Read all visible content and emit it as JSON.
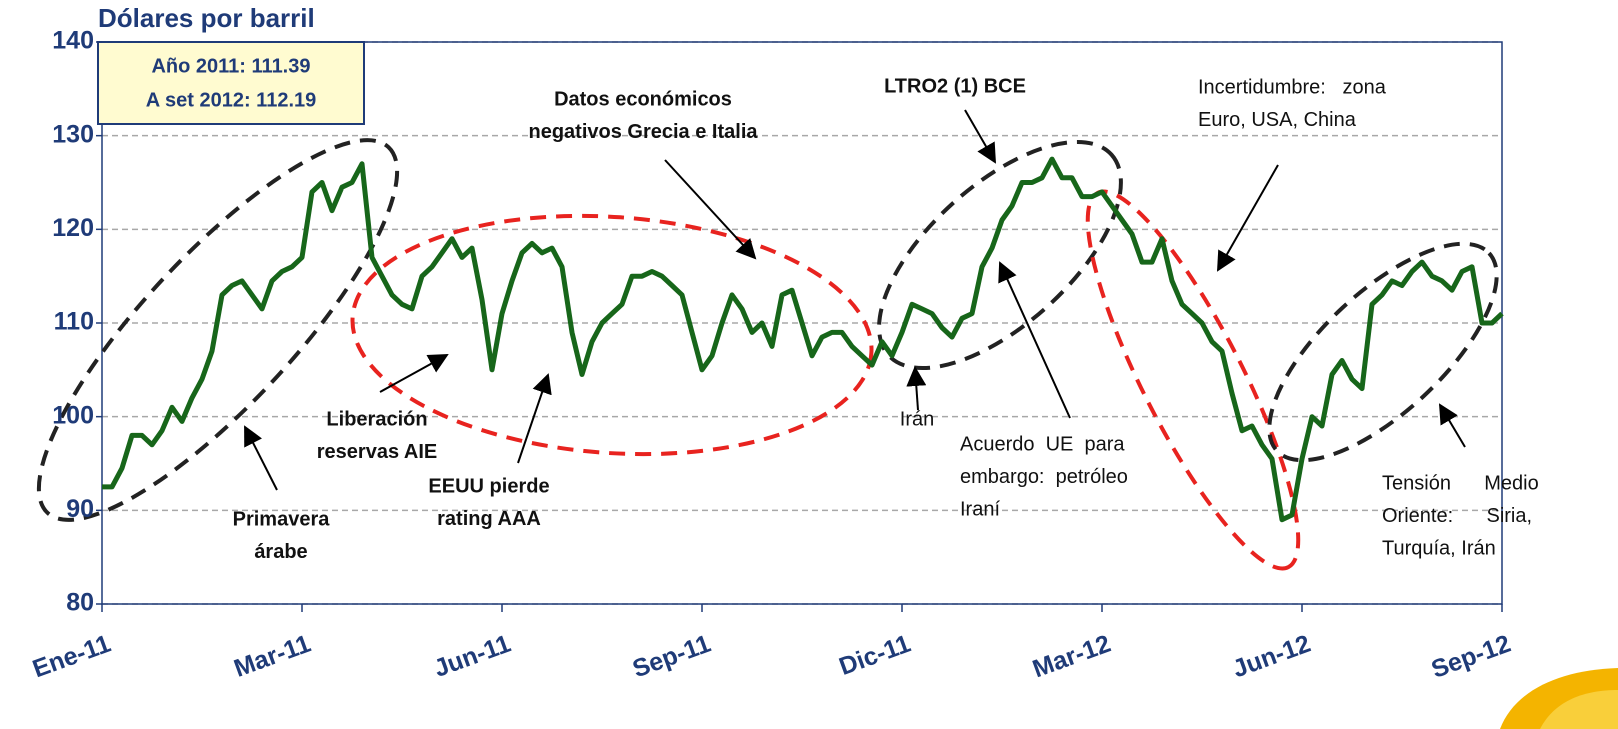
{
  "chart_data": {
    "type": "line",
    "y_axis_label": "Dólares por barril",
    "info_box": [
      "Año 2011: 111.39",
      "A set 2012: 112.19"
    ],
    "annotations": [
      {
        "lines": [
          "Datos económicos",
          "negativos Grecia e Italia"
        ]
      },
      {
        "lines": [
          "LTRO2 (1) BCE"
        ]
      },
      {
        "lines": [
          "Incertidumbre:   zona",
          "Euro, USA, China"
        ]
      },
      {
        "lines": [
          "Liberación",
          "reservas AIE"
        ]
      },
      {
        "lines": [
          "Primavera",
          "árabe"
        ]
      },
      {
        "lines": [
          "EEUU pierde",
          "rating AAA"
        ]
      },
      {
        "lines": [
          "Irán"
        ]
      },
      {
        "lines": [
          "Acuerdo  UE  para",
          "embargo:  petróleo",
          "Iraní"
        ]
      },
      {
        "lines": [
          "Tensión      Medio",
          "Oriente:      Siria,",
          "Turquía, Irán"
        ]
      }
    ],
    "color": "#17661a",
    "x": [
      0,
      0.05,
      0.1,
      0.15,
      0.2,
      0.25,
      0.3,
      0.35,
      0.4,
      0.45,
      0.5,
      0.55,
      0.6,
      0.65,
      0.7,
      0.75,
      0.8,
      0.85,
      0.9,
      0.95,
      1,
      1.05,
      1.1,
      1.15,
      1.2,
      1.25,
      1.3,
      1.35,
      1.4,
      1.45,
      1.5,
      1.55,
      1.6,
      1.65,
      1.7,
      1.75,
      1.8,
      1.85,
      1.9,
      1.95,
      2,
      2.05,
      2.1,
      2.15,
      2.2,
      2.25,
      2.3,
      2.35,
      2.4,
      2.45,
      2.5,
      2.55,
      2.6,
      2.65,
      2.7,
      2.75,
      2.8,
      2.85,
      2.9,
      2.95,
      3,
      3.05,
      3.1,
      3.15,
      3.2,
      3.25,
      3.3,
      3.35,
      3.4,
      3.45,
      3.5,
      3.55,
      3.6,
      3.65,
      3.7,
      3.75,
      3.8,
      3.85,
      3.9,
      3.95,
      4,
      4.05,
      4.1,
      4.15,
      4.2,
      4.25,
      4.3,
      4.35,
      4.4,
      4.45,
      4.5,
      4.55,
      4.6,
      4.65,
      4.7,
      4.75,
      4.8,
      4.85,
      4.9,
      4.95,
      5,
      5.05,
      5.1,
      5.15,
      5.2,
      5.25,
      5.3,
      5.35,
      5.4,
      5.45,
      5.5,
      5.55,
      5.6,
      5.65,
      5.7,
      5.75,
      5.8,
      5.85,
      5.9,
      5.95,
      6,
      6.05,
      6.1,
      6.15,
      6.2,
      6.25,
      6.3,
      6.35,
      6.4,
      6.45,
      6.5,
      6.55,
      6.6,
      6.65,
      6.7,
      6.75,
      6.8,
      6.85,
      6.9,
      6.95,
      7
    ],
    "values": [
      92.5,
      92.5,
      94.5,
      98,
      98,
      97,
      98.5,
      101,
      99.5,
      102,
      104,
      107,
      113,
      114,
      114.5,
      113,
      111.5,
      114.5,
      115.5,
      116,
      117,
      124,
      125,
      122,
      124.5,
      125,
      127,
      117,
      115,
      113,
      112,
      111.5,
      115,
      116,
      117.5,
      119,
      117,
      118,
      112.5,
      105,
      111,
      114.5,
      117.5,
      118.5,
      117.5,
      118,
      116,
      109,
      104.5,
      108,
      110,
      111,
      112,
      115,
      115,
      115.5,
      115,
      114,
      113,
      109,
      105,
      106.5,
      110,
      113,
      111.5,
      109,
      110,
      107.5,
      113,
      113.5,
      110,
      106.5,
      108.5,
      109,
      109,
      107.5,
      106.5,
      105.5,
      108,
      106.5,
      109,
      112,
      111.5,
      111,
      109.5,
      108.5,
      110.5,
      111,
      116,
      118,
      121,
      122.5,
      125,
      125,
      125.5,
      127.5,
      125.5,
      125.5,
      123.5,
      123.5,
      124,
      122.5,
      121,
      119.5,
      116.5,
      116.5,
      119,
      114.5,
      112,
      111,
      110,
      108,
      107,
      102.5,
      98.5,
      99,
      97,
      95.5,
      89,
      89.5,
      95.5,
      100,
      99,
      104.5,
      106,
      104,
      103,
      112,
      113,
      114.5,
      114,
      115.5,
      116.5,
      115,
      114.5,
      113.5,
      115.5,
      116,
      110,
      110,
      111
    ],
    "xlim": [
      0,
      7
    ],
    "xticks": [
      {
        "value": 0,
        "label": "Ene-11"
      },
      {
        "value": 1,
        "label": "Mar-11"
      },
      {
        "value": 2,
        "label": "Jun-11"
      },
      {
        "value": 3,
        "label": "Sep-11"
      },
      {
        "value": 4,
        "label": "Dic-11"
      },
      {
        "value": 5,
        "label": "Mar-12"
      },
      {
        "value": 6,
        "label": "Jun-12"
      },
      {
        "value": 7,
        "label": "Sep-12"
      }
    ],
    "ylim": [
      80,
      140
    ],
    "yticks": [
      80,
      90,
      100,
      110,
      120,
      130,
      140
    ],
    "grid": true
  }
}
